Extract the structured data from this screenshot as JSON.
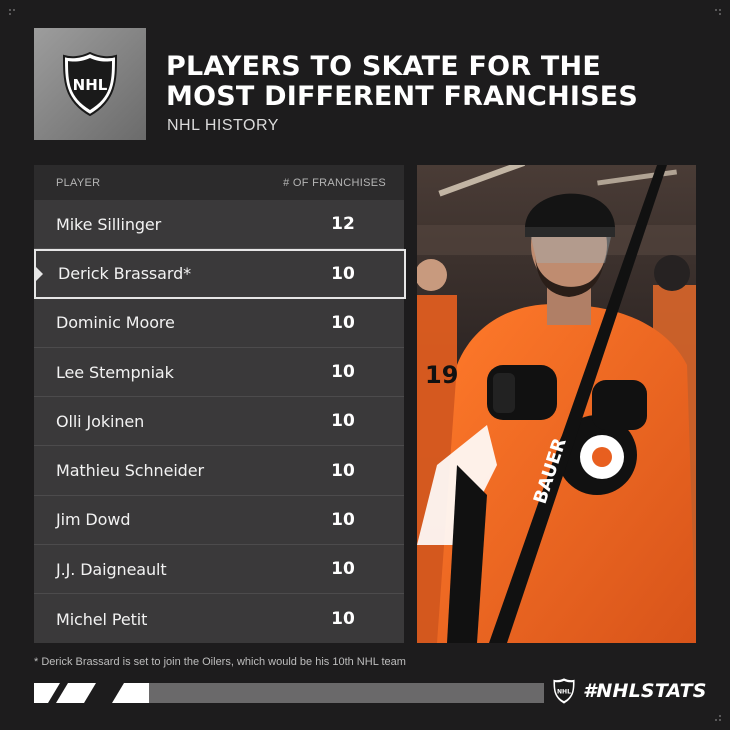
{
  "header": {
    "title_line1": "PLAYERS TO SKATE FOR THE",
    "title_line2": "MOST DIFFERENT FRANCHISES",
    "subtitle": "NHL HISTORY",
    "logo_text": "NHL"
  },
  "table": {
    "col_player": "PLAYER",
    "col_count": "# OF FRANCHISES",
    "rows": [
      {
        "name": "Mike Sillinger",
        "count": "12"
      },
      {
        "name": "Derick Brassard*",
        "count": "10"
      },
      {
        "name": "Dominic Moore",
        "count": "10"
      },
      {
        "name": "Lee Stempniak",
        "count": "10"
      },
      {
        "name": "Olli Jokinen",
        "count": "10"
      },
      {
        "name": "Mathieu Schneider",
        "count": "10"
      },
      {
        "name": "Jim Dowd",
        "count": "10"
      },
      {
        "name": "J.J. Daigneault",
        "count": "10"
      },
      {
        "name": "Michel Petit",
        "count": "10"
      }
    ]
  },
  "chart_data": {
    "type": "table",
    "title": "PLAYERS TO SKATE FOR THE MOST DIFFERENT FRANCHISES",
    "subtitle": "NHL HISTORY",
    "columns": [
      "PLAYER",
      "# OF FRANCHISES"
    ],
    "categories": [
      "Mike Sillinger",
      "Derick Brassard*",
      "Dominic Moore",
      "Lee Stempniak",
      "Olli Jokinen",
      "Mathieu Schneider",
      "Jim Dowd",
      "J.J. Daigneault",
      "Michel Petit"
    ],
    "values": [
      12,
      10,
      10,
      10,
      10,
      10,
      10,
      10,
      10
    ],
    "highlighted": "Derick Brassard*"
  },
  "photo": {
    "jersey_number": "19",
    "stick_brand": "BAUER"
  },
  "footnote": "* Derick Brassard is set to join the Oilers, which would be his 10th NHL team",
  "brand": {
    "hashtag": "#NHLSTATS",
    "logo_text": "NHL"
  },
  "colors": {
    "background": "#1d1c1d",
    "table_bg": "#3a393a",
    "header_bg": "#2c2b2c",
    "jersey_orange": "#f26a21"
  }
}
